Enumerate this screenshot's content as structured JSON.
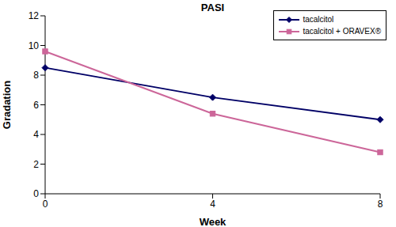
{
  "chart_data": {
    "type": "line",
    "title": "PASI",
    "x_label": "Week",
    "y_label": "Gradation",
    "categories": [
      "0",
      "4",
      "8"
    ],
    "series": [
      {
        "name": "tacalcitol",
        "color": "#000066",
        "marker": "diamond",
        "values": [
          8.5,
          6.5,
          5.0
        ]
      },
      {
        "name": "tacalcitol + ORAVEX®",
        "color": "#cc6699",
        "marker": "square",
        "values": [
          9.6,
          5.4,
          2.8
        ]
      }
    ],
    "ylim": [
      0,
      12
    ],
    "yticks": [
      0,
      2,
      4,
      6,
      8,
      10,
      12
    ],
    "grid": false,
    "legend": "top-right"
  }
}
